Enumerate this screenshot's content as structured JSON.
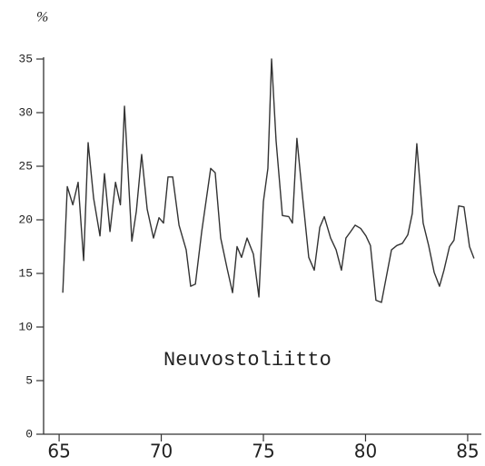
{
  "chart_data": {
    "type": "line",
    "y_label": "%",
    "annotation": "Neuvostoliitto",
    "x": [
      65.18,
      65.4,
      65.67,
      65.93,
      66.2,
      66.42,
      66.69,
      67.0,
      67.22,
      67.49,
      67.76,
      68.0,
      68.2,
      68.56,
      68.78,
      69.04,
      69.31,
      69.62,
      69.89,
      70.11,
      70.33,
      70.56,
      70.87,
      71.22,
      71.44,
      71.67,
      71.98,
      72.42,
      72.64,
      72.91,
      73.22,
      73.49,
      73.71,
      73.93,
      74.2,
      74.51,
      74.78,
      75.0,
      75.22,
      75.4,
      75.62,
      75.93,
      76.24,
      76.42,
      76.64,
      76.91,
      77.22,
      77.49,
      77.76,
      77.98,
      78.29,
      78.56,
      78.82,
      79.04,
      79.27,
      79.49,
      79.76,
      80.02,
      80.24,
      80.51,
      80.78,
      81.27,
      81.53,
      81.8,
      82.07,
      82.29,
      82.51,
      82.82,
      83.09,
      83.36,
      83.62,
      83.84,
      84.11,
      84.33,
      84.56,
      84.82,
      85.09,
      85.31
    ],
    "series": [
      {
        "name": "Neuvostoliitto",
        "color": "#333333",
        "values": [
          13.2,
          23.1,
          21.4,
          23.5,
          16.2,
          27.2,
          22.0,
          18.5,
          24.3,
          18.9,
          23.5,
          21.4,
          30.6,
          18.0,
          20.8,
          26.1,
          21.0,
          18.3,
          20.2,
          19.7,
          24.0,
          24.0,
          19.5,
          17.2,
          13.8,
          14.0,
          18.9,
          24.8,
          24.4,
          18.3,
          15.5,
          13.2,
          17.5,
          16.5,
          18.3,
          16.8,
          12.8,
          21.7,
          24.8,
          35.0,
          27.4,
          20.4,
          20.3,
          19.7,
          27.6,
          22.3,
          16.5,
          15.3,
          19.3,
          20.3,
          18.3,
          17.2,
          15.3,
          18.3,
          18.9,
          19.5,
          19.2,
          18.5,
          17.6,
          12.5,
          12.3,
          17.2,
          17.6,
          17.8,
          18.6,
          20.6,
          27.1,
          19.7,
          17.6,
          15.1,
          13.8,
          15.3,
          17.5,
          18.1,
          21.3,
          21.2,
          17.5,
          16.4
        ]
      }
    ],
    "xlim": [
      64.24,
      85.67
    ],
    "ylim": [
      0,
      35
    ],
    "xticks": [
      65,
      70,
      75,
      80,
      85
    ],
    "yticks": [
      0,
      5,
      10,
      15,
      20,
      25,
      30,
      35
    ]
  }
}
